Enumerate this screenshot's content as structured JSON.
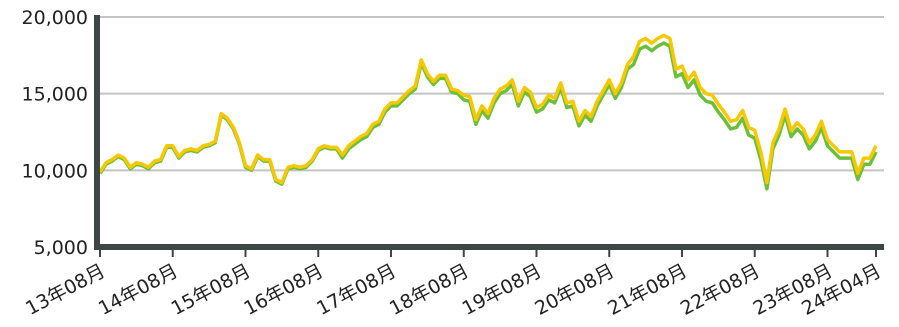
{
  "chart_data": {
    "type": "line",
    "categories": [
      "13年08月",
      null,
      null,
      null,
      null,
      null,
      null,
      null,
      null,
      null,
      null,
      null,
      "14年08月",
      null,
      null,
      null,
      null,
      null,
      null,
      null,
      null,
      null,
      null,
      null,
      "15年08月",
      null,
      null,
      null,
      null,
      null,
      null,
      null,
      null,
      null,
      null,
      null,
      "16年08月",
      null,
      null,
      null,
      null,
      null,
      null,
      null,
      null,
      null,
      null,
      null,
      "17年08月",
      null,
      null,
      null,
      null,
      null,
      null,
      null,
      null,
      null,
      null,
      null,
      "18年08月",
      null,
      null,
      null,
      null,
      null,
      null,
      null,
      null,
      null,
      null,
      null,
      "19年08月",
      null,
      null,
      null,
      null,
      null,
      null,
      null,
      null,
      null,
      null,
      null,
      "20年08月",
      null,
      null,
      null,
      null,
      null,
      null,
      null,
      null,
      null,
      null,
      null,
      "21年08月",
      null,
      null,
      null,
      null,
      null,
      null,
      null,
      null,
      null,
      null,
      null,
      "22年08月",
      null,
      null,
      null,
      null,
      null,
      null,
      null,
      null,
      null,
      null,
      null,
      "23年08月",
      null,
      null,
      null,
      null,
      null,
      null,
      null,
      "24年04月"
    ],
    "series": [
      {
        "color": "#6cbf3a",
        "values": [
          9800,
          10400,
          10600,
          10900,
          10700,
          10100,
          10400,
          10300,
          10100,
          10500,
          10600,
          11500,
          11500,
          10800,
          11200,
          11300,
          11200,
          11500,
          11600,
          11800,
          13600,
          13300,
          12700,
          11700,
          10200,
          10000,
          10900,
          10600,
          10600,
          9300,
          9100,
          10100,
          10200,
          10100,
          10200,
          10600,
          11300,
          11500,
          11400,
          11400,
          10800,
          11400,
          11700,
          12000,
          12200,
          12800,
          13000,
          13800,
          14200,
          14200,
          14600,
          15000,
          15300,
          17000,
          16100,
          15600,
          16000,
          16000,
          15100,
          15000,
          14600,
          14500,
          13000,
          13900,
          13400,
          14400,
          15000,
          15200,
          15600,
          14200,
          15100,
          14800,
          13800,
          14000,
          14600,
          14400,
          15400,
          14100,
          14200,
          12900,
          13600,
          13200,
          14200,
          14900,
          15600,
          14700,
          15400,
          16600,
          16900,
          17900,
          18100,
          17800,
          18100,
          18300,
          18100,
          16100,
          16300,
          15400,
          15900,
          14900,
          14500,
          14400,
          13800,
          13300,
          12700,
          12800,
          13400,
          12300,
          12100,
          10700,
          8800,
          11400,
          12300,
          13600,
          12200,
          12700,
          12300,
          11400,
          11900,
          12800,
          11600,
          11200,
          10800,
          10800,
          10800,
          9400,
          10400,
          10400,
          11200
        ]
      },
      {
        "color": "#f5c800",
        "values": [
          9900,
          10500,
          10700,
          11000,
          10800,
          10200,
          10500,
          10400,
          10200,
          10600,
          10700,
          11600,
          11600,
          10900,
          11300,
          11400,
          11300,
          11600,
          11700,
          11900,
          13700,
          13400,
          12800,
          11800,
          10300,
          10100,
          11000,
          10700,
          10700,
          9400,
          9200,
          10200,
          10300,
          10200,
          10300,
          10700,
          11400,
          11600,
          11500,
          11500,
          11000,
          11600,
          11900,
          12200,
          12400,
          13000,
          13200,
          14000,
          14400,
          14400,
          14800,
          15200,
          15500,
          17200,
          16300,
          15800,
          16200,
          16200,
          15300,
          15200,
          14900,
          14800,
          13300,
          14200,
          13700,
          14700,
          15300,
          15500,
          15900,
          14500,
          15400,
          15100,
          14100,
          14300,
          14900,
          14700,
          15700,
          14400,
          14500,
          13200,
          13900,
          13500,
          14500,
          15200,
          15900,
          15000,
          15700,
          16900,
          17400,
          18400,
          18600,
          18300,
          18600,
          18800,
          18600,
          16600,
          16800,
          15900,
          16400,
          15400,
          15000,
          14900,
          14300,
          13800,
          13200,
          13300,
          13900,
          12800,
          12600,
          11200,
          9200,
          11800,
          12700,
          14000,
          12600,
          13100,
          12700,
          11800,
          12300,
          13200,
          12000,
          11600,
          11200,
          11200,
          11200,
          9800,
          10800,
          10800,
          11600
        ]
      }
    ],
    "ylim": [
      5000,
      20000
    ],
    "yticks": [
      {
        "value": 5000,
        "label": "5,000"
      },
      {
        "value": 10000,
        "label": "10,000"
      },
      {
        "value": 15000,
        "label": "15,000"
      },
      {
        "value": 20000,
        "label": "20,000"
      }
    ],
    "grid": true
  }
}
